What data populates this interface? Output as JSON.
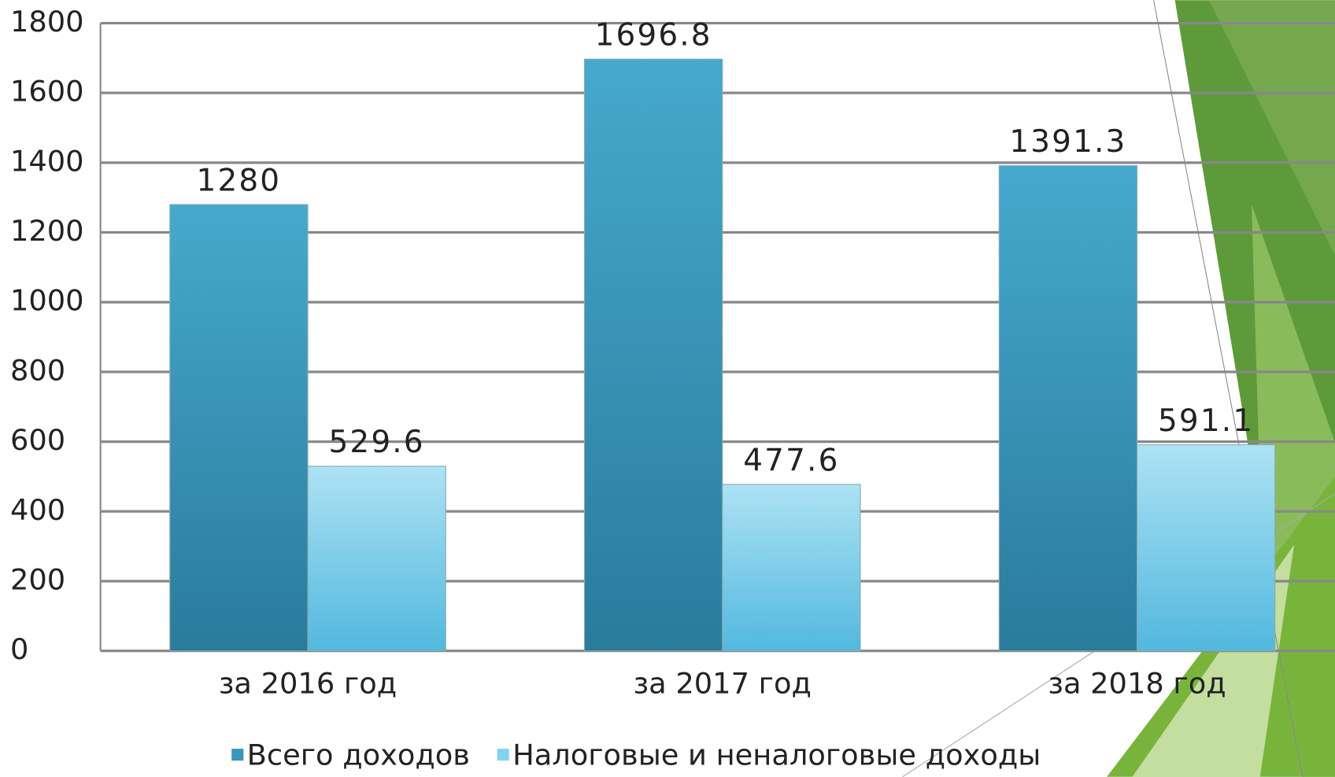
{
  "chart_data": {
    "type": "bar",
    "categories": [
      "за 2016 год",
      "за 2017 год",
      "за 2018 год"
    ],
    "series": [
      {
        "name": "Всего доходов",
        "color": "#3a96ba",
        "values": [
          1280,
          1696.8,
          1391.3
        ]
      },
      {
        "name": "Налоговые и неналоговые доходы",
        "color": "#86d1ee",
        "values": [
          529.6,
          477.6,
          591.1
        ]
      }
    ],
    "ylim": [
      0,
      1800
    ],
    "yticks": [
      0,
      200,
      400,
      600,
      800,
      1000,
      1200,
      1400,
      1600,
      1800
    ],
    "grid": true,
    "legend": "bottom"
  }
}
